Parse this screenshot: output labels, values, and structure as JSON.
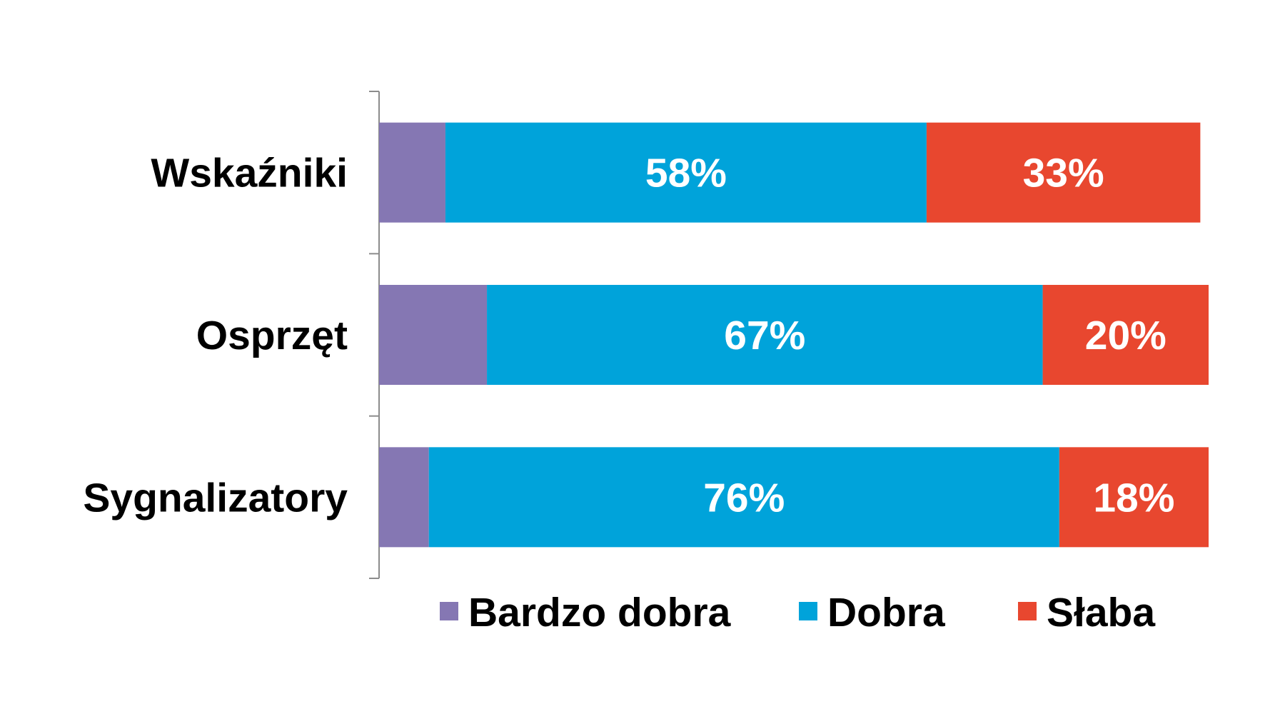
{
  "chart_data": {
    "type": "bar",
    "orientation": "horizontal",
    "stacked": true,
    "categories": [
      "Wskaźniki",
      "Osprzęt",
      "Sygnalizatory"
    ],
    "series": [
      {
        "name": "Bardzo dobra",
        "color": "#8577B3",
        "values": [
          8,
          13,
          6
        ],
        "labels": [
          "",
          "",
          ""
        ]
      },
      {
        "name": "Dobra",
        "color": "#00A3DA",
        "values": [
          58,
          67,
          76
        ],
        "labels": [
          "58%",
          "67%",
          "76%"
        ]
      },
      {
        "name": "Słaba",
        "color": "#E8472F",
        "values": [
          33,
          20,
          18
        ],
        "labels": [
          "33%",
          "20%",
          "18%"
        ]
      }
    ],
    "xlim": [
      0,
      100
    ],
    "grid": false,
    "legend": "bottom"
  }
}
